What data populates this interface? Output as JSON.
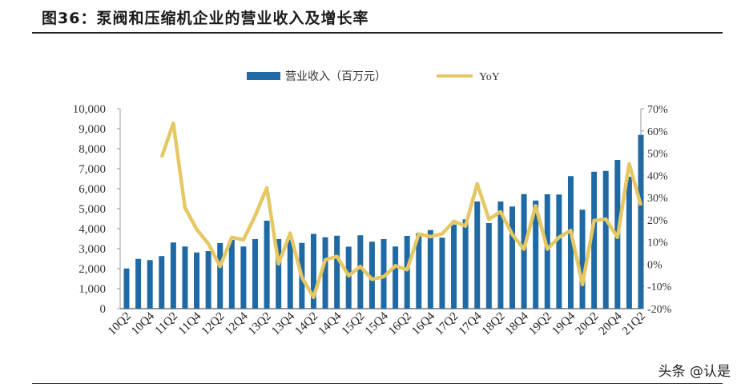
{
  "header": {
    "title": "图36：泵阀和压缩机企业的营业收入及增长率"
  },
  "watermark": "头条 @认是",
  "chart_data": {
    "type": "bar+line",
    "title": "",
    "legend_position": "top",
    "categories": [
      "10Q2",
      "10Q3",
      "10Q4",
      "11Q1",
      "11Q2",
      "11Q3",
      "11Q4",
      "12Q1",
      "12Q2",
      "12Q3",
      "12Q4",
      "13Q1",
      "13Q2",
      "13Q3",
      "13Q4",
      "14Q1",
      "14Q2",
      "14Q3",
      "14Q4",
      "15Q1",
      "15Q2",
      "15Q3",
      "15Q4",
      "16Q1",
      "16Q2",
      "16Q3",
      "16Q4",
      "17Q1",
      "17Q2",
      "17Q3",
      "17Q4",
      "18Q1",
      "18Q2",
      "18Q3",
      "18Q4",
      "19Q1",
      "19Q2",
      "19Q3",
      "19Q4",
      "20Q1",
      "20Q2",
      "20Q3",
      "20Q4",
      "21Q1",
      "21Q2"
    ],
    "x_tick_labels": [
      "10Q2",
      "10Q4",
      "11Q2",
      "11Q4",
      "12Q2",
      "12Q4",
      "13Q2",
      "13Q4",
      "14Q2",
      "14Q4",
      "15Q2",
      "15Q4",
      "16Q2",
      "16Q4",
      "17Q2",
      "17Q4",
      "18Q2",
      "18Q4",
      "19Q2",
      "19Q4",
      "20Q2",
      "20Q4",
      "21Q2"
    ],
    "y_left": {
      "range": [
        0,
        10000
      ],
      "ticks": [
        "0",
        "1,000",
        "2,000",
        "3,000",
        "4,000",
        "5,000",
        "6,000",
        "7,000",
        "8,000",
        "9,000",
        "10,000"
      ]
    },
    "y_right": {
      "range": [
        -20,
        70
      ],
      "ticks": [
        "-20%",
        "-10%",
        "0%",
        "10%",
        "20%",
        "30%",
        "40%",
        "50%",
        "60%",
        "70%"
      ]
    },
    "series": [
      {
        "name": "营业收入（百万元）",
        "type": "bar",
        "color": "#1f6aa5",
        "axis": "left",
        "values": [
          2010,
          2490,
          2430,
          2630,
          3310,
          3110,
          2810,
          2880,
          3280,
          3440,
          3110,
          3480,
          4400,
          3480,
          3440,
          3290,
          3740,
          3570,
          3650,
          3100,
          3670,
          3350,
          3480,
          3110,
          3640,
          3780,
          3930,
          3550,
          4210,
          4470,
          5360,
          4280,
          5360,
          5110,
          5730,
          5410,
          5720,
          5710,
          6630,
          4950,
          6850,
          6890,
          7440,
          6600,
          8690
        ]
      },
      {
        "name": "YoY",
        "type": "line",
        "color": "#e5c864",
        "axis": "right",
        "values": [
          null,
          null,
          null,
          48.1,
          63.5,
          25.4,
          15.7,
          9.2,
          -1.0,
          12.1,
          11.0,
          21.8,
          34.4,
          0.2,
          14.0,
          -5.9,
          -14.9,
          2.0,
          3.5,
          -5.2,
          -1.0,
          -6.8,
          -5.6,
          -0.7,
          -2.5,
          13.6,
          12.4,
          13.7,
          19.3,
          17.2,
          36.2,
          20.3,
          23.6,
          13.4,
          6.8,
          26.3,
          6.8,
          12.1,
          15.2,
          -9.2,
          19.7,
          20.3,
          12.1,
          45.2,
          26.5
        ]
      }
    ]
  }
}
